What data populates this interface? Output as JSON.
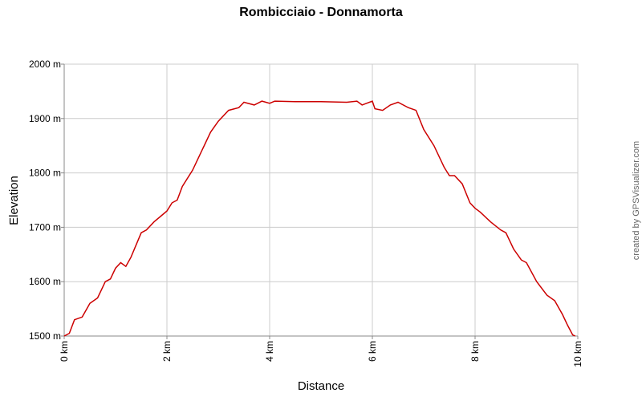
{
  "chart_data": {
    "type": "line",
    "title": "Rombicciaio - Donnamorta",
    "x_label": "Distance",
    "y_label": "Elevation",
    "annotation": "created by GPSVisualizer.com",
    "x": [
      0,
      0.1,
      0.2,
      0.35,
      0.5,
      0.65,
      0.8,
      0.9,
      1.0,
      1.1,
      1.2,
      1.3,
      1.5,
      1.6,
      1.75,
      1.9,
      2.0,
      2.1,
      2.2,
      2.3,
      2.5,
      2.7,
      2.85,
      3.0,
      3.2,
      3.4,
      3.5,
      3.7,
      3.85,
      4.0,
      4.1,
      4.5,
      5.0,
      5.5,
      5.7,
      5.8,
      6.0,
      6.05,
      6.2,
      6.35,
      6.5,
      6.7,
      6.85,
      7.0,
      7.2,
      7.4,
      7.5,
      7.6,
      7.75,
      7.9,
      8.0,
      8.1,
      8.3,
      8.5,
      8.6,
      8.75,
      8.9,
      9.0,
      9.2,
      9.4,
      9.55,
      9.7,
      9.8,
      9.9,
      9.95
    ],
    "values": [
      1500,
      1505,
      1530,
      1535,
      1560,
      1570,
      1600,
      1605,
      1625,
      1635,
      1628,
      1645,
      1690,
      1695,
      1710,
      1722,
      1730,
      1745,
      1750,
      1775,
      1805,
      1845,
      1875,
      1895,
      1915,
      1920,
      1930,
      1925,
      1932,
      1928,
      1932,
      1931,
      1931,
      1930,
      1932,
      1925,
      1932,
      1918,
      1915,
      1925,
      1930,
      1920,
      1915,
      1880,
      1850,
      1810,
      1795,
      1795,
      1780,
      1745,
      1735,
      1728,
      1710,
      1695,
      1690,
      1660,
      1640,
      1635,
      1600,
      1575,
      1565,
      1540,
      1520,
      1502,
      1500
    ],
    "color": "#cc0000",
    "xlim": [
      0,
      10
    ],
    "xticks": [
      {
        "value": 0,
        "label": "0 km"
      },
      {
        "value": 2,
        "label": "2 km"
      },
      {
        "value": 4,
        "label": "4 km"
      },
      {
        "value": 6,
        "label": "6 km"
      },
      {
        "value": 8,
        "label": "8 km"
      },
      {
        "value": 10,
        "label": "10 km"
      }
    ],
    "ylim": [
      1500,
      2000
    ],
    "yticks": [
      {
        "value": 1500,
        "label": "1500 m"
      },
      {
        "value": 1600,
        "label": "1600 m"
      },
      {
        "value": 1700,
        "label": "1700 m"
      },
      {
        "value": 1800,
        "label": "1800 m"
      },
      {
        "value": 1900,
        "label": "1900 m"
      },
      {
        "value": 2000,
        "label": "2000 m"
      }
    ],
    "grid": true
  }
}
